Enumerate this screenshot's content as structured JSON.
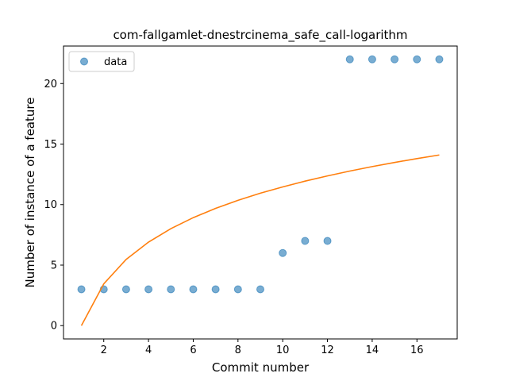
{
  "chart_data": {
    "type": "scatter",
    "title": "com-fallgamlet-dnestrcinema_safe_call-logarithm",
    "xlabel": "Commit number",
    "ylabel": "Number of instance of a feature",
    "xlim": [
      0.2,
      17.8
    ],
    "ylim": [
      -1.1,
      23.1
    ],
    "xticks": [
      2,
      4,
      6,
      8,
      10,
      12,
      14,
      16
    ],
    "yticks": [
      0,
      5,
      10,
      15,
      20
    ],
    "grid": false,
    "legend_position": "upper-left",
    "series": [
      {
        "name": "data",
        "kind": "scatter",
        "color": "#1f77b4",
        "x": [
          1,
          2,
          3,
          4,
          5,
          6,
          7,
          8,
          9,
          10,
          11,
          12,
          13,
          14,
          15,
          16,
          17
        ],
        "y": [
          3,
          3,
          3,
          3,
          3,
          3,
          3,
          3,
          3,
          6,
          7,
          7,
          22,
          22,
          22,
          22,
          22
        ]
      },
      {
        "kind": "line",
        "color": "#ff7f0e",
        "x": [
          1,
          2,
          3,
          4,
          5,
          6,
          7,
          8,
          9,
          10,
          11,
          12,
          13,
          14,
          15,
          16,
          17
        ],
        "y": [
          0,
          3.45,
          5.47,
          6.9,
          8.01,
          8.92,
          9.69,
          10.35,
          10.94,
          11.46,
          11.94,
          12.37,
          12.77,
          13.14,
          13.48,
          13.8,
          14.1
        ]
      }
    ]
  }
}
